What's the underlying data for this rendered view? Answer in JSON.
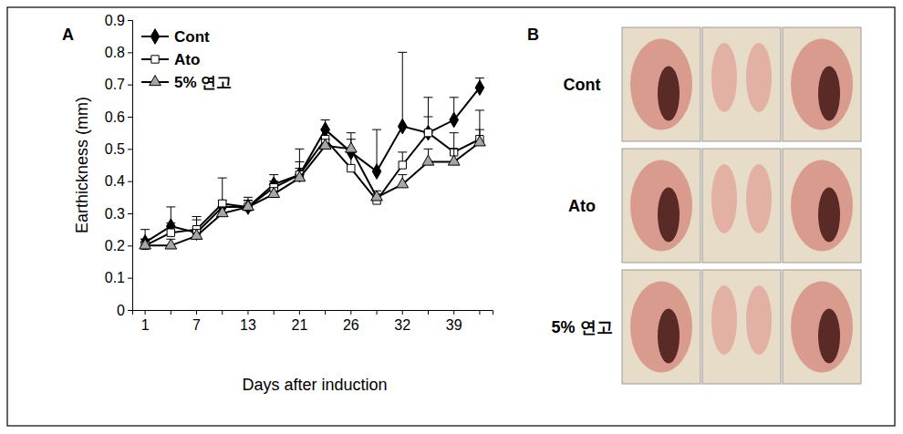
{
  "chart_data": {
    "type": "line",
    "panel_label": "A",
    "y_label": "Earthickness (mm)",
    "x_label": "Days after induction",
    "categories": [
      1,
      null,
      7,
      null,
      13,
      null,
      21,
      null,
      26,
      null,
      32,
      null,
      39,
      null
    ],
    "ylim": [
      0,
      0.9
    ],
    "yticks": [
      0,
      0.1,
      0.2,
      0.3,
      0.4,
      0.5,
      0.6,
      0.7,
      0.8,
      0.9
    ],
    "legend": "top-left",
    "series": [
      {
        "name": "Cont",
        "color": "#000000",
        "marker": "diamond",
        "values": [
          0.21,
          0.26,
          0.24,
          0.32,
          0.32,
          0.39,
          0.42,
          0.56,
          0.49,
          0.43,
          0.57,
          0.55,
          0.59,
          0.69
        ],
        "errors": [
          0.04,
          0.06,
          0.04,
          0.02,
          0.03,
          0.03,
          0.08,
          0.03,
          0.06,
          0.13,
          0.23,
          0.05,
          0.07,
          0.03
        ]
      },
      {
        "name": "Ato",
        "color": "#ffffff",
        "marker": "square",
        "values": [
          0.2,
          0.24,
          0.25,
          0.33,
          0.32,
          0.38,
          0.42,
          0.53,
          0.44,
          0.34,
          0.45,
          0.55,
          0.49,
          0.53
        ],
        "errors": [
          0.02,
          0.03,
          0.04,
          0.08,
          0.02,
          0.02,
          0.04,
          0.03,
          0.05,
          0.02,
          0.04,
          0.11,
          0.06,
          0.09
        ]
      },
      {
        "name": "5% 연고",
        "color": "#a6a6a6",
        "marker": "triangle",
        "values": [
          0.2,
          0.2,
          0.23,
          0.3,
          0.32,
          0.36,
          0.41,
          0.51,
          0.5,
          0.35,
          0.39,
          0.46,
          0.46,
          0.52
        ],
        "errors": [
          0.02,
          0.02,
          0.02,
          0.02,
          0.02,
          0.02,
          0.03,
          0.02,
          0.03,
          0.02,
          0.03,
          0.04,
          0.04,
          0.04
        ]
      }
    ]
  },
  "images": {
    "panel_label": "B",
    "row_labels": [
      "Cont",
      "Ato",
      "5% 연고"
    ]
  }
}
